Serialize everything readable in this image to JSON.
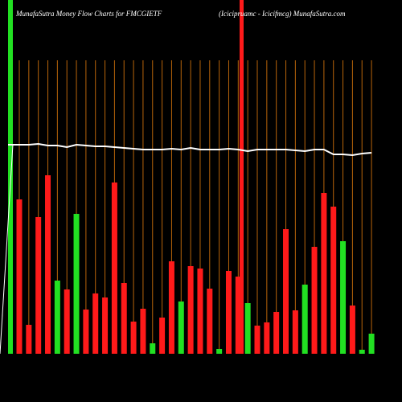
{
  "chart_data": {
    "type": "bar",
    "title": "MunafaSutra  Money Flow  Charts for FMCGIETF",
    "subtitle": "(Icicipruamc - Icicifmcg) MunafaSutra.com",
    "categories": [
      null,
      null,
      null,
      null,
      null,
      null,
      null,
      null,
      null,
      null,
      null,
      null,
      null,
      null,
      null,
      null,
      null,
      null,
      null,
      null,
      null,
      null,
      null,
      null,
      null,
      null,
      null,
      null,
      null,
      null,
      null,
      null,
      null,
      null,
      null,
      null,
      null,
      null
    ],
    "values": [
      192,
      36,
      170,
      222,
      91,
      80,
      174,
      55,
      75,
      70,
      213,
      88,
      40,
      56,
      13,
      45,
      115,
      65,
      109,
      106,
      81,
      6,
      103,
      96,
      63,
      35,
      39,
      52,
      155,
      54,
      86,
      133,
      200,
      183,
      140,
      60,
      5,
      25
    ],
    "colors": [
      "#ff1a1a",
      "#ff1a1a",
      "#ff1a1a",
      "#ff1a1a",
      "#22e022",
      "#ff1a1a",
      "#22e022",
      "#ff1a1a",
      "#ff1a1a",
      "#ff1a1a",
      "#ff1a1a",
      "#ff1a1a",
      "#ff1a1a",
      "#ff1a1a",
      "#22e022",
      "#ff1a1a",
      "#ff1a1a",
      "#22e022",
      "#ff1a1a",
      "#ff1a1a",
      "#ff1a1a",
      "#22e022",
      "#ff1a1a",
      "#ff1a1a",
      "#22e022",
      "#ff1a1a",
      "#ff1a1a",
      "#ff1a1a",
      "#ff1a1a",
      "#ff1a1a",
      "#22e022",
      "#ff1a1a",
      "#ff1a1a",
      "#ff1a1a",
      "#22e022",
      "#ff1a1a",
      "#22e022",
      "#22e022"
    ],
    "line": {
      "color": "#ffffff",
      "values": [
        260,
        260,
        261,
        259,
        259,
        257,
        260,
        259,
        258,
        258,
        257,
        256,
        255,
        254,
        254,
        254,
        255,
        254,
        256,
        254,
        254,
        254,
        255,
        254,
        252,
        254,
        254,
        254,
        254,
        253,
        252,
        254,
        254,
        248,
        248,
        247,
        249,
        250
      ]
    },
    "ylim": [
      0,
      440
    ]
  }
}
